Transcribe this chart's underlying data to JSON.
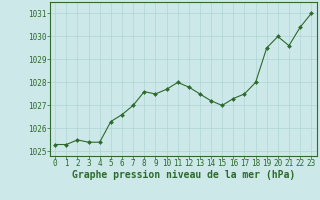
{
  "x": [
    0,
    1,
    2,
    3,
    4,
    5,
    6,
    7,
    8,
    9,
    10,
    11,
    12,
    13,
    14,
    15,
    16,
    17,
    18,
    19,
    20,
    21,
    22,
    23
  ],
  "y": [
    1025.3,
    1025.3,
    1025.5,
    1025.4,
    1025.4,
    1026.3,
    1026.6,
    1027.0,
    1027.6,
    1027.5,
    1027.7,
    1028.0,
    1027.8,
    1027.5,
    1027.2,
    1027.0,
    1027.3,
    1027.5,
    1028.0,
    1029.5,
    1030.0,
    1029.6,
    1030.4,
    1031.0
  ],
  "line_color": "#2d6a2d",
  "marker_color": "#2d6a2d",
  "bg_color": "#cce8e8",
  "grid_color": "#b0d4d4",
  "axis_color": "#2d6a2d",
  "spine_color": "#2d6a2d",
  "ylim": [
    1024.8,
    1031.5
  ],
  "yticks": [
    1025,
    1026,
    1027,
    1028,
    1029,
    1030,
    1031
  ],
  "xlim": [
    -0.5,
    23.5
  ],
  "xticks": [
    0,
    1,
    2,
    3,
    4,
    5,
    6,
    7,
    8,
    9,
    10,
    11,
    12,
    13,
    14,
    15,
    16,
    17,
    18,
    19,
    20,
    21,
    22,
    23
  ],
  "xlabel": "Graphe pression niveau de la mer (hPa)",
  "xlabel_fontsize": 7,
  "tick_fontsize": 5.5,
  "ytick_fontsize": 5.5,
  "linewidth": 0.8,
  "markersize": 2.0
}
